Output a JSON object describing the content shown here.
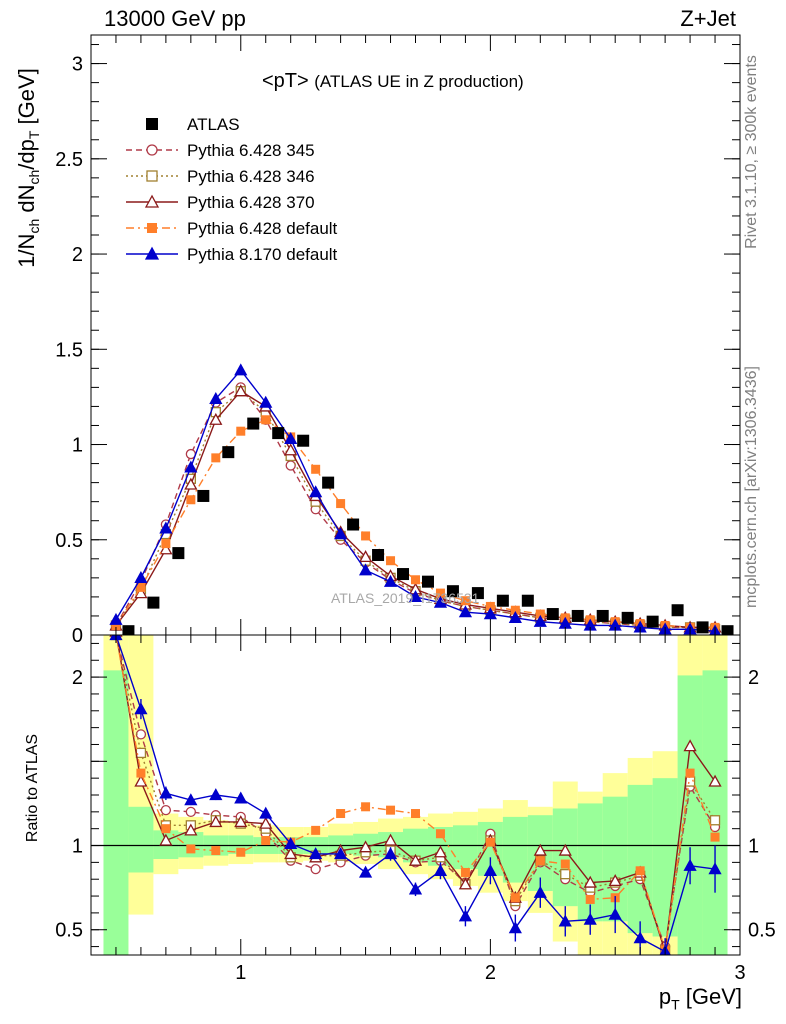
{
  "header": {
    "energy_label": "13000 GeV pp",
    "process_label": "Z+Jet"
  },
  "side_texts": {
    "rivet": "Rivet 3.1.10, ≥ 300k events",
    "mcplots": "mcplots.cern.ch [arXiv:1306.3436]"
  },
  "watermark": "ATLAS_2019_I1736531",
  "chart_data": [
    {
      "type": "line",
      "panel": "main",
      "title": "<pT> (ATLAS UE in Z production)",
      "title_main": "<pT>",
      "title_sub": "(ATLAS UE in Z production)",
      "ylabel": "1/N_ch dN_ch/dp_T [GeV]",
      "ylim": [
        0,
        3.15
      ],
      "yticks": [
        0,
        0.5,
        1,
        1.5,
        2,
        2.5,
        3
      ],
      "ytick_labels": [
        "0",
        "0.5",
        "1",
        "1.5",
        "2",
        "2.5",
        "3"
      ],
      "xlim": [
        0.4,
        3.0
      ],
      "legend_position": "top-left",
      "series": [
        {
          "name": "ATLAS",
          "color": "#000000",
          "marker": "square-filled",
          "style": "none",
          "x": [
            0.55,
            0.65,
            0.75,
            0.85,
            0.95,
            1.05,
            1.15,
            1.25,
            1.35,
            1.45,
            1.55,
            1.65,
            1.75,
            1.85,
            1.95,
            2.05,
            2.15,
            2.25,
            2.35,
            2.45,
            2.55,
            2.65,
            2.75,
            2.85,
            2.95
          ],
          "values": [
            0.02,
            0.17,
            0.43,
            0.73,
            0.96,
            1.11,
            1.06,
            1.02,
            0.8,
            0.58,
            0.42,
            0.32,
            0.28,
            0.23,
            0.22,
            0.18,
            0.18,
            0.11,
            0.1,
            0.1,
            0.09,
            0.07,
            0.13,
            0.04,
            0.02
          ]
        },
        {
          "name": "Pythia 6.428 345",
          "color": "#b03a48",
          "marker": "circle-open",
          "style": "dashed",
          "x": [
            0.5,
            0.6,
            0.7,
            0.8,
            0.9,
            1.0,
            1.1,
            1.2,
            1.3,
            1.4,
            1.5,
            1.6,
            1.7,
            1.8,
            1.9,
            2.0,
            2.1,
            2.2,
            2.3,
            2.4,
            2.5,
            2.6,
            2.7,
            2.8,
            2.9
          ],
          "values": [
            0.05,
            0.28,
            0.58,
            0.95,
            1.22,
            1.3,
            1.13,
            0.89,
            0.66,
            0.5,
            0.38,
            0.29,
            0.22,
            0.18,
            0.15,
            0.13,
            0.11,
            0.09,
            0.08,
            0.07,
            0.06,
            0.05,
            0.04,
            0.04,
            0.03
          ]
        },
        {
          "name": "Pythia 6.428 346",
          "color": "#a08030",
          "marker": "square-open",
          "style": "dotted",
          "x": [
            0.5,
            0.6,
            0.7,
            0.8,
            0.9,
            1.0,
            1.1,
            1.2,
            1.3,
            1.4,
            1.5,
            1.6,
            1.7,
            1.8,
            1.9,
            2.0,
            2.1,
            2.2,
            2.3,
            2.4,
            2.5,
            2.6,
            2.7,
            2.8,
            2.9
          ],
          "values": [
            0.05,
            0.24,
            0.53,
            0.82,
            1.17,
            1.28,
            1.17,
            0.94,
            0.7,
            0.52,
            0.39,
            0.3,
            0.23,
            0.18,
            0.15,
            0.13,
            0.11,
            0.09,
            0.08,
            0.07,
            0.06,
            0.05,
            0.04,
            0.04,
            0.03
          ]
        },
        {
          "name": "Pythia 6.428 370",
          "color": "#8b1a1a",
          "marker": "triangle-open",
          "style": "solid",
          "x": [
            0.5,
            0.6,
            0.7,
            0.8,
            0.9,
            1.0,
            1.1,
            1.2,
            1.3,
            1.4,
            1.5,
            1.6,
            1.7,
            1.8,
            1.9,
            2.0,
            2.1,
            2.2,
            2.3,
            2.4,
            2.5,
            2.6,
            2.7,
            2.8,
            2.9
          ],
          "values": [
            0.05,
            0.22,
            0.45,
            0.79,
            1.13,
            1.28,
            1.2,
            0.97,
            0.73,
            0.54,
            0.41,
            0.31,
            0.24,
            0.19,
            0.16,
            0.14,
            0.12,
            0.1,
            0.09,
            0.08,
            0.07,
            0.06,
            0.05,
            0.04,
            0.04
          ]
        },
        {
          "name": "Pythia 6.428 default",
          "color": "#ff7f2a",
          "marker": "square-filled",
          "style": "dashdot",
          "x": [
            0.5,
            0.6,
            0.7,
            0.8,
            0.9,
            1.0,
            1.1,
            1.2,
            1.3,
            1.4,
            1.5,
            1.6,
            1.7,
            1.8,
            1.9,
            2.0,
            2.1,
            2.2,
            2.3,
            2.4,
            2.5,
            2.6,
            2.7,
            2.8,
            2.9
          ],
          "values": [
            0.05,
            0.25,
            0.48,
            0.71,
            0.93,
            1.07,
            1.13,
            1.04,
            0.87,
            0.69,
            0.52,
            0.39,
            0.29,
            0.22,
            0.18,
            0.15,
            0.13,
            0.11,
            0.09,
            0.08,
            0.07,
            0.06,
            0.05,
            0.04,
            0.04
          ]
        },
        {
          "name": "Pythia 8.170 default",
          "color": "#0000cc",
          "marker": "triangle-filled",
          "style": "solid",
          "x": [
            0.5,
            0.6,
            0.7,
            0.8,
            0.9,
            1.0,
            1.1,
            1.2,
            1.3,
            1.4,
            1.5,
            1.6,
            1.7,
            1.8,
            1.9,
            2.0,
            2.1,
            2.2,
            2.3,
            2.4,
            2.5,
            2.6,
            2.7,
            2.8,
            2.9
          ],
          "values": [
            0.08,
            0.3,
            0.56,
            0.88,
            1.24,
            1.39,
            1.22,
            1.03,
            0.75,
            0.53,
            0.34,
            0.28,
            0.2,
            0.17,
            0.12,
            0.11,
            0.09,
            0.07,
            0.06,
            0.05,
            0.05,
            0.04,
            0.03,
            0.03,
            0.02
          ]
        }
      ]
    },
    {
      "type": "line",
      "panel": "ratio",
      "ylabel": "Ratio to ATLAS",
      "xlabel": "p_T [GeV]",
      "ylim": [
        0.35,
        2.25
      ],
      "yticks": [
        0.5,
        1,
        1.5,
        2
      ],
      "ytick_labels": [
        "0.5",
        "1",
        "2"
      ],
      "ytick_label_values": [
        0.5,
        1,
        2
      ],
      "xlim": [
        0.4,
        3.0
      ],
      "xticks": [
        1,
        2,
        3
      ],
      "xtick_labels": [
        "1",
        "2",
        "3"
      ],
      "reference_line": 1,
      "bands": {
        "x_edges": [
          0.45,
          0.55,
          0.65,
          0.75,
          0.85,
          0.95,
          1.05,
          1.15,
          1.25,
          1.35,
          1.45,
          1.55,
          1.65,
          1.75,
          1.85,
          1.95,
          2.05,
          2.15,
          2.25,
          2.35,
          2.45,
          2.55,
          2.65,
          2.75,
          2.85,
          2.95
        ],
        "yellow_lo": [
          0.35,
          0.59,
          0.83,
          0.86,
          0.88,
          0.89,
          0.9,
          0.9,
          0.91,
          0.9,
          0.89,
          0.86,
          0.83,
          0.8,
          0.76,
          0.72,
          0.67,
          0.6,
          0.43,
          0.35,
          0.35,
          0.35,
          0.35,
          0.35,
          0.35
        ],
        "yellow_hi": [
          2.25,
          2.25,
          1.19,
          1.17,
          1.15,
          1.14,
          1.12,
          1.11,
          1.11,
          1.13,
          1.14,
          1.16,
          1.17,
          1.19,
          1.2,
          1.22,
          1.27,
          1.23,
          1.38,
          1.32,
          1.43,
          1.52,
          1.56,
          2.25,
          2.25
        ],
        "green_lo": [
          0.35,
          0.84,
          0.92,
          0.93,
          0.94,
          0.95,
          0.95,
          0.95,
          0.95,
          0.95,
          0.94,
          0.93,
          0.9,
          0.88,
          0.86,
          0.82,
          0.78,
          0.73,
          0.64,
          0.55,
          0.55,
          0.48,
          0.46,
          0.35,
          0.35
        ],
        "green_hi": [
          2.04,
          1.23,
          1.09,
          1.08,
          1.06,
          1.06,
          1.05,
          1.05,
          1.05,
          1.06,
          1.07,
          1.08,
          1.1,
          1.11,
          1.12,
          1.14,
          1.17,
          1.18,
          1.22,
          1.25,
          1.29,
          1.36,
          1.4,
          2.01,
          2.04
        ]
      },
      "series": [
        {
          "name": "Pythia 6.428 345",
          "color": "#b03a48",
          "marker": "circle-open",
          "style": "dashed",
          "x": [
            0.5,
            0.6,
            0.7,
            0.8,
            0.9,
            1.0,
            1.1,
            1.2,
            1.3,
            1.4,
            1.5,
            1.6,
            1.7,
            1.8,
            1.9,
            2.0,
            2.1,
            2.2,
            2.3,
            2.4,
            2.5,
            2.6,
            2.7,
            2.8,
            2.9
          ],
          "values": [
            2.25,
            1.66,
            1.21,
            1.2,
            1.18,
            1.17,
            1.07,
            0.91,
            0.86,
            0.9,
            0.94,
            0.95,
            0.9,
            0.91,
            0.78,
            1.07,
            0.64,
            0.9,
            0.8,
            0.72,
            0.76,
            0.8,
            0.4,
            1.35,
            1.11
          ]
        },
        {
          "name": "Pythia 6.428 346",
          "color": "#a08030",
          "marker": "square-open",
          "style": "dotted",
          "x": [
            0.5,
            0.6,
            0.7,
            0.8,
            0.9,
            1.0,
            1.1,
            1.2,
            1.3,
            1.4,
            1.5,
            1.6,
            1.7,
            1.8,
            1.9,
            2.0,
            2.1,
            2.2,
            2.3,
            2.4,
            2.5,
            2.6,
            2.7,
            2.8,
            2.9
          ],
          "values": [
            2.25,
            1.55,
            1.12,
            1.12,
            1.15,
            1.13,
            1.1,
            0.93,
            0.94,
            0.94,
            0.96,
            0.97,
            0.91,
            0.93,
            0.77,
            1.03,
            0.67,
            0.91,
            0.83,
            0.75,
            0.78,
            0.82,
            0.38,
            1.38,
            1.15
          ]
        },
        {
          "name": "Pythia 6.428 370",
          "color": "#8b1a1a",
          "marker": "triangle-open",
          "style": "solid",
          "x": [
            0.5,
            0.6,
            0.7,
            0.8,
            0.9,
            1.0,
            1.1,
            1.2,
            1.3,
            1.4,
            1.5,
            1.6,
            1.7,
            1.8,
            1.9,
            2.0,
            2.1,
            2.2,
            2.3,
            2.4,
            2.5,
            2.6,
            2.7,
            2.8,
            2.9
          ],
          "values": [
            2.27,
            1.38,
            1.03,
            1.09,
            1.14,
            1.14,
            1.13,
            0.95,
            0.93,
            0.97,
            0.99,
            1.03,
            0.91,
            0.96,
            0.77,
            1.03,
            0.69,
            0.97,
            0.97,
            0.78,
            0.79,
            0.84,
            0.37,
            1.59,
            1.38
          ]
        },
        {
          "name": "Pythia 6.428 default",
          "color": "#ff7f2a",
          "marker": "square-filled",
          "style": "dashdot",
          "x": [
            0.5,
            0.6,
            0.7,
            0.8,
            0.9,
            1.0,
            1.1,
            1.2,
            1.3,
            1.4,
            1.5,
            1.6,
            1.7,
            1.8,
            1.9,
            2.0,
            2.1,
            2.2,
            2.3,
            2.4,
            2.5,
            2.6,
            2.7,
            2.8,
            2.9
          ],
          "values": [
            2.25,
            1.43,
            1.1,
            0.98,
            0.97,
            0.96,
            1.03,
            1.02,
            1.09,
            1.19,
            1.23,
            1.21,
            1.19,
            1.07,
            0.84,
            1.02,
            0.69,
            0.91,
            0.89,
            0.68,
            0.69,
            0.85,
            0.38,
            1.43,
            1.05
          ]
        },
        {
          "name": "Pythia 8.170 default",
          "color": "#0000cc",
          "marker": "triangle-filled",
          "style": "solid",
          "x": [
            0.5,
            0.6,
            0.7,
            0.8,
            0.9,
            1.0,
            1.1,
            1.2,
            1.3,
            1.4,
            1.5,
            1.6,
            1.7,
            1.8,
            1.9,
            2.0,
            2.1,
            2.2,
            2.3,
            2.4,
            2.5,
            2.6,
            2.7,
            2.8,
            2.9
          ],
          "values": [
            2.25,
            1.81,
            1.31,
            1.27,
            1.3,
            1.28,
            1.19,
            1.01,
            0.95,
            0.95,
            0.84,
            0.95,
            0.74,
            0.85,
            0.58,
            0.85,
            0.51,
            0.72,
            0.55,
            0.56,
            0.59,
            0.45,
            0.37,
            0.88,
            0.86
          ],
          "errors": [
            0,
            0.06,
            0.04,
            0.03,
            0.03,
            0.03,
            0.03,
            0.03,
            0.03,
            0.03,
            0.03,
            0.04,
            0.04,
            0.05,
            0.06,
            0.08,
            0.08,
            0.09,
            0.09,
            0.09,
            0.11,
            0.1,
            0.08,
            0.11,
            0.14
          ]
        }
      ]
    }
  ]
}
